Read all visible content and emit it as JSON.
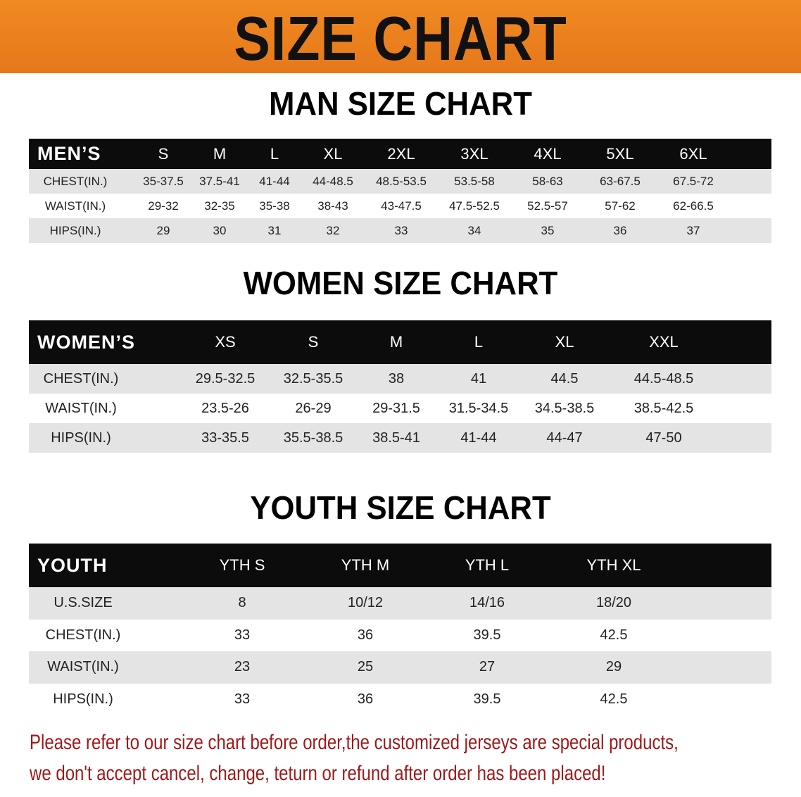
{
  "banner_title": "SIZE CHART",
  "men": {
    "title": "MAN SIZE CHART",
    "header": "MEN’S",
    "sizes": [
      "S",
      "M",
      "L",
      "XL",
      "2XL",
      "3XL",
      "4XL",
      "5XL",
      "6XL"
    ],
    "rows": [
      {
        "label": "CHEST(IN.)",
        "values": [
          "35-37.5",
          "37.5-41",
          "41-44",
          "44-48.5",
          "48.5-53.5",
          "53.5-58",
          "58-63",
          "63-67.5",
          "67.5-72"
        ]
      },
      {
        "label": "WAIST(IN.)",
        "values": [
          "29-32",
          "32-35",
          "35-38",
          "38-43",
          "43-47.5",
          "47.5-52.5",
          "52.5-57",
          "57-62",
          "62-66.5"
        ]
      },
      {
        "label": "HIPS(IN.)",
        "values": [
          "29",
          "30",
          "31",
          "32",
          "33",
          "34",
          "35",
          "36",
          "37"
        ]
      }
    ]
  },
  "women": {
    "title": "WOMEN SIZE CHART",
    "header": "WOMEN’S",
    "sizes": [
      "XS",
      "S",
      "M",
      "L",
      "XL",
      "XXL"
    ],
    "rows": [
      {
        "label": "CHEST(IN.)",
        "values": [
          "29.5-32.5",
          "32.5-35.5",
          "38",
          "41",
          "44.5",
          "44.5-48.5"
        ]
      },
      {
        "label": "WAIST(IN.)",
        "values": [
          "23.5-26",
          "26-29",
          "29-31.5",
          "31.5-34.5",
          "34.5-38.5",
          "38.5-42.5"
        ]
      },
      {
        "label": "HIPS(IN.)",
        "values": [
          "33-35.5",
          "35.5-38.5",
          "38.5-41",
          "41-44",
          "44-47",
          "47-50"
        ]
      }
    ]
  },
  "youth": {
    "title": "YOUTH SIZE CHART",
    "header": "YOUTH",
    "sizes": [
      "YTH S",
      "YTH M",
      "YTH L",
      "YTH XL"
    ],
    "rows": [
      {
        "label": "U.S.SIZE",
        "values": [
          "8",
          "10/12",
          "14/16",
          "18/20"
        ]
      },
      {
        "label": "CHEST(IN.)",
        "values": [
          "33",
          "36",
          "39.5",
          "42.5"
        ]
      },
      {
        "label": "WAIST(IN.)",
        "values": [
          "23",
          "25",
          "27",
          "29"
        ]
      },
      {
        "label": "HIPS(IN.)",
        "values": [
          "33",
          "36",
          "39.5",
          "42.5"
        ]
      }
    ]
  },
  "note": [
    "Please refer to our size chart before order,the customized jerseys are special products,",
    "we don't accept cancel, change, teturn or refund after order has been placed!"
  ],
  "colors": {
    "banner": "#e8781c",
    "header_row": "#0c0c0c",
    "alt_row": "#e4e4e4",
    "note": "#a01818"
  }
}
